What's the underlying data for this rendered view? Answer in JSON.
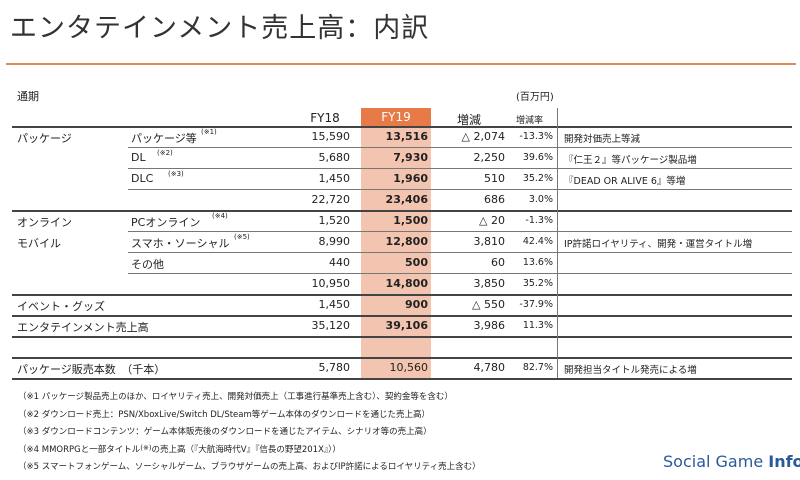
{
  "title": "エンタテインメント売上高：内訳",
  "period_label": "通期",
  "unit_label": "(百万円)",
  "headers": {
    "fy18": "FY18",
    "fy19": "FY19",
    "change": "増減",
    "rate": "増減率"
  },
  "rows": [
    {
      "cat": "パッケージ",
      "sub": "パッケージ等",
      "sup": "(※1)",
      "fy18": "15,590",
      "fy19": "13,516",
      "chg": "△ 2,074",
      "rate": "-13.3%",
      "note": "開発対価売上等減"
    },
    {
      "cat": "",
      "sub": "DL",
      "sup": "(※2)",
      "fy18": "5,680",
      "fy19": "7,930",
      "chg": "2,250",
      "rate": "39.6%",
      "note": "『仁王２』等パッケージ製品増"
    },
    {
      "cat": "",
      "sub": "DLC",
      "sup": "(※3)",
      "fy18": "1,450",
      "fy19": "1,960",
      "chg": "510",
      "rate": "35.2%",
      "note": "『DEAD OR ALIVE 6』等増"
    },
    {
      "cat": "",
      "sub": "",
      "sup": "",
      "fy18": "22,720",
      "fy19": "23,406",
      "chg": "686",
      "rate": "3.0%",
      "note": ""
    },
    {
      "cat": "オンライン",
      "sub": "PCオンライン",
      "sup": "(※4)",
      "fy18": "1,520",
      "fy19": "1,500",
      "chg": "△ 20",
      "rate": "-1.3%",
      "note": ""
    },
    {
      "cat": "モバイル",
      "sub": "スマホ・ソーシャル",
      "sup": "(※5)",
      "fy18": "8,990",
      "fy19": "12,800",
      "chg": "3,810",
      "rate": "42.4%",
      "note": "IP許諾ロイヤリティ、開発・運営タイトル増"
    },
    {
      "cat": "",
      "sub": "その他",
      "sup": "",
      "fy18": "440",
      "fy19": "500",
      "chg": "60",
      "rate": "13.6%",
      "note": ""
    },
    {
      "cat": "",
      "sub": "",
      "sup": "",
      "fy18": "10,950",
      "fy19": "14,800",
      "chg": "3,850",
      "rate": "35.2%",
      "note": ""
    },
    {
      "cat": "イベント・グッズ",
      "sub": "",
      "sup": "",
      "fy18": "1,450",
      "fy19": "900",
      "chg": "△ 550",
      "rate": "-37.9%",
      "note": ""
    },
    {
      "cat": "エンタテインメント売上高",
      "sub": "",
      "sup": "",
      "fy18": "35,120",
      "fy19": "39,106",
      "chg": "3,986",
      "rate": "11.3%",
      "note": ""
    },
    {
      "cat": "パッケージ販売本数　（千本）",
      "sub": "",
      "sup": "",
      "fy18": "5,780",
      "fy19": "10,560",
      "chg": "4,780",
      "rate": "82.7%",
      "note": "開発担当タイトル発売による増"
    }
  ],
  "notes": [
    "（※1 パッケージ製品売上のほか、ロイヤリティ売上、開発対価売上（工事進行基準売上含む）、契約金等を含む）",
    "（※2 ダウンロード売上：PSN/XboxLive/Switch DL/Steam等ゲーム本体のダウンロードを通じた売上高）",
    "（※3 ダウンロードコンテンツ：ゲーム本体販売後のダウンロードを通じたアイテム、シナリオ等の売上高）",
    "（※4 MMORPGと一部タイトル",
    "の売上高（『大航海時代Ⅴ』『信長の野望201X』））",
    "（※5 スマートフォンゲーム、ソーシャルゲーム、ブラウザゲームの売上高、およびIP許諾によるロイヤリティ売上含む）"
  ],
  "note4_sup": "(※)",
  "logo": {
    "part1": "Social Game ",
    "part2": "Info"
  }
}
